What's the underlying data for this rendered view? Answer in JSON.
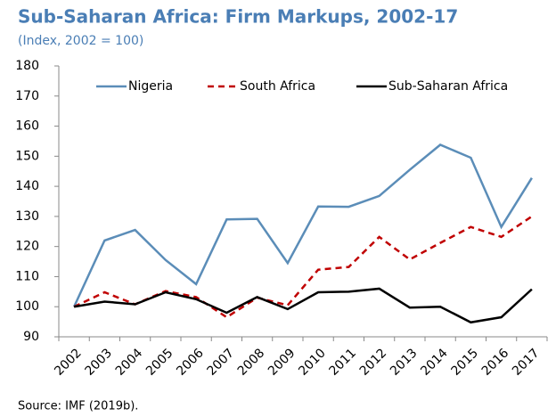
{
  "chart_data": {
    "type": "line",
    "title": "Sub-Saharan Africa: Firm Markups, 2002-17",
    "subtitle": "(Index, 2002 = 100)",
    "source": "Source: IMF (2019b).",
    "categories": [
      "2002",
      "2003",
      "2004",
      "2005",
      "2006",
      "2007",
      "2008",
      "2009",
      "2010",
      "2011",
      "2012",
      "2013",
      "2014",
      "2015",
      "2016",
      "2017"
    ],
    "series": [
      {
        "name": "Nigeria",
        "color": "#5b8db8",
        "dash": "solid",
        "values": [
          100,
          122,
          125.5,
          115.5,
          107.5,
          129,
          129.2,
          114.5,
          133.3,
          133.2,
          136.8,
          145.5,
          153.8,
          149.5,
          126.5,
          142.8
        ]
      },
      {
        "name": "South Africa",
        "color": "#c00000",
        "dash": "dashed",
        "values": [
          100,
          104.8,
          100.8,
          105.2,
          103.2,
          96.5,
          103,
          100.5,
          112.3,
          113.2,
          123.2,
          115.7,
          121.2,
          126.5,
          123.2,
          130
        ]
      },
      {
        "name": "Sub-Saharan Africa",
        "color": "#000000",
        "dash": "solid",
        "values": [
          100,
          101.7,
          100.8,
          104.8,
          102.5,
          98,
          103.2,
          99.2,
          104.8,
          105,
          106,
          99.7,
          100,
          94.8,
          96.5,
          105.8
        ]
      }
    ],
    "ylim": [
      90,
      180
    ],
    "yticks": [
      90,
      100,
      110,
      120,
      130,
      140,
      150,
      160,
      170,
      180
    ],
    "grid": false,
    "legend": "top"
  }
}
